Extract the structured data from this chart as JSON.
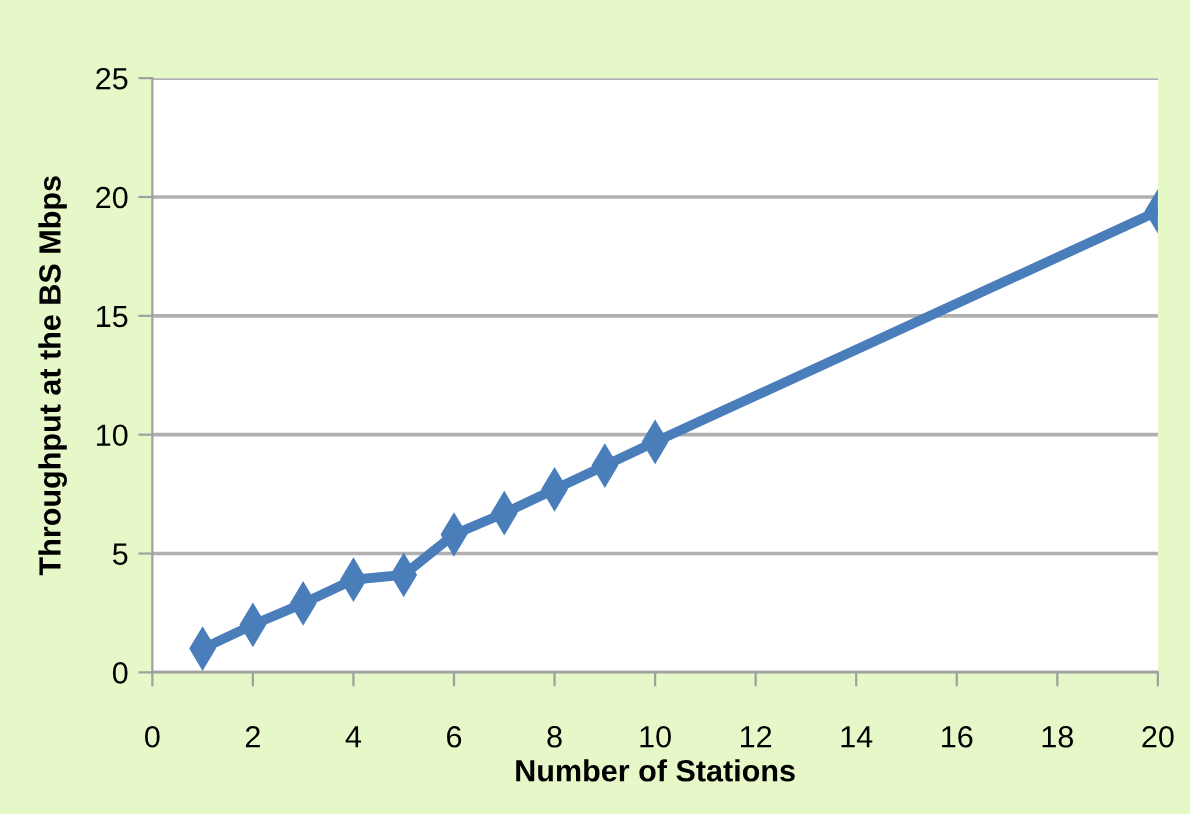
{
  "chart_data": {
    "type": "line",
    "xlabel": "Number of Stations",
    "ylabel": "Throughput at the BS Mbps",
    "x": [
      1,
      2,
      3,
      4,
      5,
      6,
      7,
      8,
      9,
      10,
      20
    ],
    "series": [
      {
        "color": "#4a7ebb",
        "values": [
          1.0,
          2.0,
          2.9,
          3.9,
          4.1,
          5.8,
          6.7,
          7.7,
          8.7,
          9.7,
          19.4
        ]
      }
    ],
    "xlim": [
      0,
      20
    ],
    "xticks": [
      0,
      2,
      4,
      6,
      8,
      10,
      12,
      14,
      16,
      18,
      20
    ],
    "ylim": [
      0,
      25
    ],
    "yticks": [
      0,
      5,
      10,
      15,
      20,
      25
    ],
    "grid": "y",
    "marker": "diamond",
    "line_style": "solid"
  }
}
